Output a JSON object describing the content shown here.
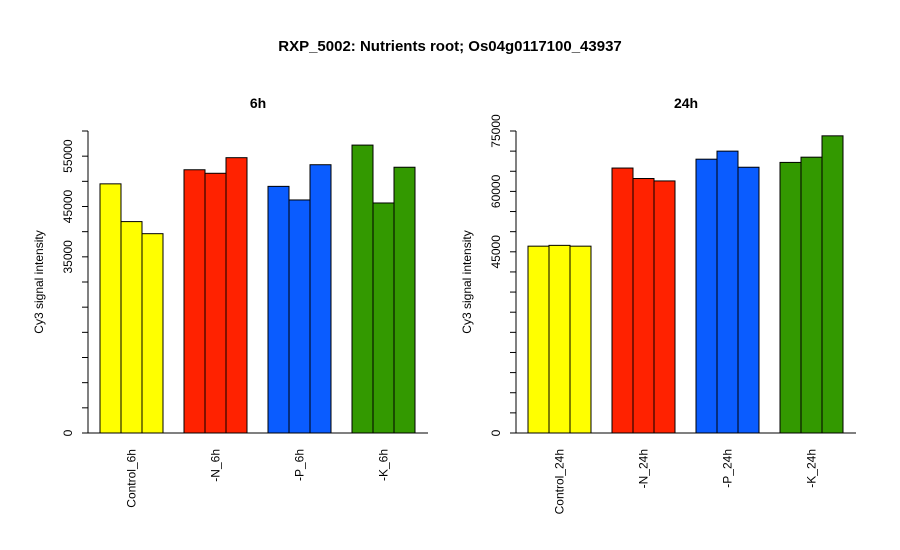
{
  "title": "RXP_5002: Nutrients root; Os04g0117100_43937",
  "chart_data": [
    {
      "type": "bar",
      "title": "6h",
      "ylabel": "Cy3 signal intensity",
      "ylim": [
        0,
        60000
      ],
      "yticks": [
        0,
        35000,
        45000,
        55000
      ],
      "grid": false,
      "categories": [
        "Control_6h",
        "-N_6h",
        "-P_6h",
        "-K_6h"
      ],
      "group_colors": [
        "#ffff00",
        "#ff2200",
        "#0a5cff",
        "#339900"
      ],
      "values": [
        [
          49500,
          42000,
          39600
        ],
        [
          52300,
          51600,
          54700
        ],
        [
          49000,
          46300,
          53300
        ],
        [
          57200,
          45700,
          52800
        ]
      ]
    },
    {
      "type": "bar",
      "title": "24h",
      "ylabel": "Cy3 signal intensity",
      "ylim": [
        0,
        75000
      ],
      "yticks": [
        0,
        45000,
        60000,
        75000
      ],
      "grid": false,
      "categories": [
        "Control_24h",
        "-N_24h",
        "-P_24h",
        "-K_24h"
      ],
      "group_colors": [
        "#ffff00",
        "#ff2200",
        "#0a5cff",
        "#339900"
      ],
      "values": [
        [
          46400,
          46600,
          46400
        ],
        [
          65800,
          63200,
          62600
        ],
        [
          68000,
          70000,
          66000
        ],
        [
          67200,
          68500,
          73800
        ]
      ]
    }
  ]
}
